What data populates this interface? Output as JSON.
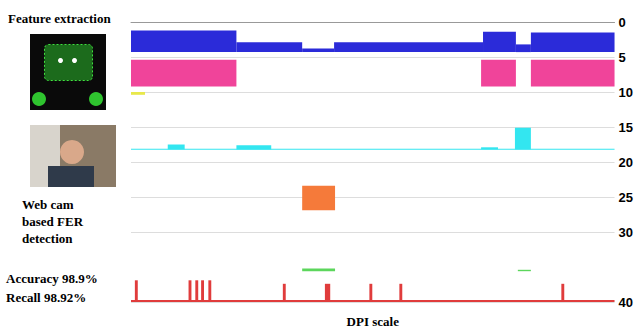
{
  "chart_data": {
    "type": "timeline",
    "annotations": [
      "Feature extraction",
      "Web cam based FER detection",
      "Accuracy 98.9%",
      "Recall 98.92%"
    ],
    "xlabel": "DPI scale",
    "xlim": [
      0,
      100
    ],
    "ylim": [
      0,
      40
    ],
    "yticks": [
      0,
      5,
      10,
      15,
      20,
      25,
      30,
      40
    ],
    "grid": true,
    "tick_labels": "y",
    "series": [
      {
        "color": "#2b2bd9",
        "base": 4.3,
        "start": [
          0,
          21.8,
          35.4,
          42,
          72.8,
          79.6,
          82.7
        ],
        "end": [
          21.8,
          35.4,
          42,
          72.8,
          79.6,
          82.7,
          100
        ],
        "values": [
          3.1,
          1.4,
          0.5,
          1.4,
          2.9,
          1.1,
          2.8
        ]
      },
      {
        "color": "#f0449a",
        "base": 9.2,
        "start": [
          0,
          72.4,
          82.7
        ],
        "end": [
          21.8,
          79.6,
          100
        ],
        "values": [
          3.8,
          3.8,
          3.8
        ]
      },
      {
        "color": "#e8e84a",
        "base": 10.4,
        "start": [
          0
        ],
        "end": [
          2.9
        ],
        "values": [
          0.4
        ]
      },
      {
        "color": "#33e6f0",
        "base": 18.2,
        "start": [
          0,
          7.6,
          21.8,
          72.4,
          79.4
        ],
        "end": [
          100,
          11.1,
          29,
          75.9,
          82.7
        ],
        "values": [
          0.1,
          0.7,
          0.6,
          0.3,
          3.1
        ]
      },
      {
        "color": "#f57a3a",
        "base": 26.9,
        "start": [
          35.4
        ],
        "end": [
          42.2
        ],
        "values": [
          3.5
        ]
      },
      {
        "color": "#5cd65c",
        "base": 35.6,
        "start": [
          35.4,
          80
        ],
        "end": [
          42.2,
          82.7
        ],
        "values": [
          0.4,
          0.2
        ]
      },
      {
        "color": "#e03c3c",
        "base": 40,
        "start": [
          0,
          0.8,
          11.9,
          13.3,
          14.5,
          16,
          31.4,
          40.1,
          49.3,
          55.5,
          89
        ],
        "end": [
          100,
          1.4,
          12.5,
          13.9,
          15.1,
          16.6,
          32,
          41.2,
          49.9,
          56.1,
          89.6
        ],
        "values": [
          0.3,
          3.1,
          3.1,
          3.1,
          3.1,
          3.1,
          2.6,
          2.6,
          2.6,
          2.6,
          2.6
        ]
      }
    ]
  }
}
